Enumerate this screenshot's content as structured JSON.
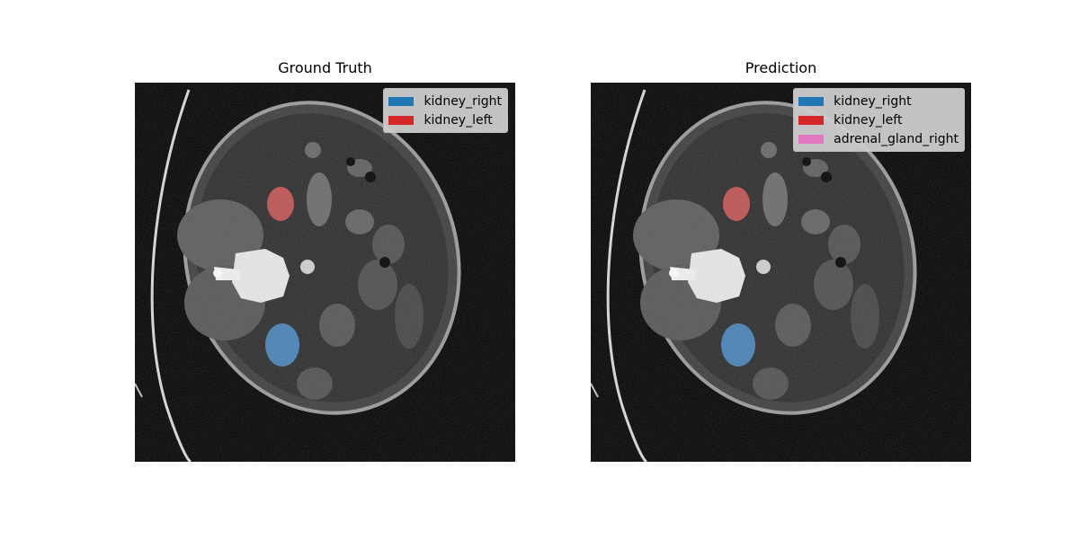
{
  "panels": {
    "ground_truth": {
      "title": "Ground Truth",
      "legend": [
        {
          "label": "kidney_right",
          "color": "#1f77b4"
        },
        {
          "label": "kidney_left",
          "color": "#d62728"
        }
      ]
    },
    "prediction": {
      "title": "Prediction",
      "legend": [
        {
          "label": "kidney_right",
          "color": "#1f77b4"
        },
        {
          "label": "kidney_left",
          "color": "#d62728"
        },
        {
          "label": "adrenal_gland_right",
          "color": "#e377c2"
        }
      ]
    }
  },
  "colors": {
    "background": "#000000",
    "overlay_right_kidney": "#5b9bd5",
    "overlay_left_kidney": "#e06666"
  }
}
